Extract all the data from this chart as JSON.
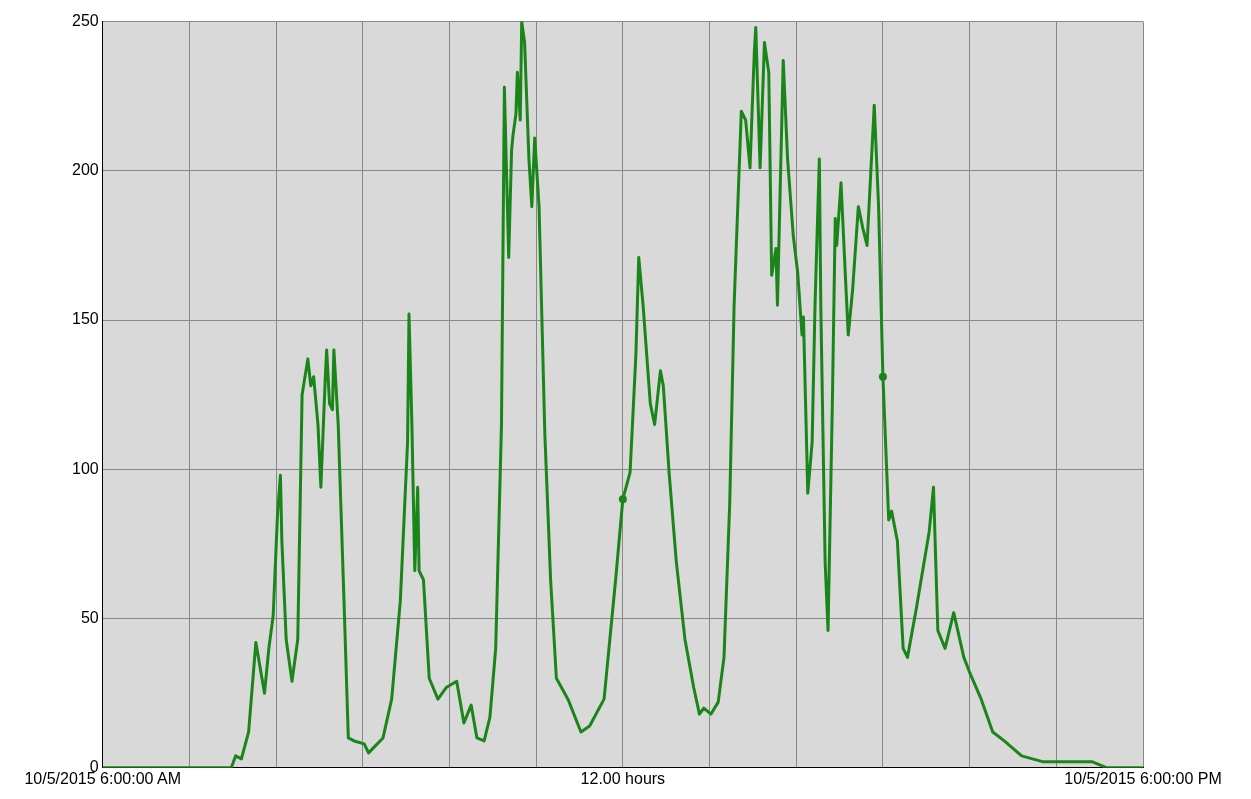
{
  "chart_data": {
    "type": "line",
    "x": [
      "2015-10-05T06:00",
      "2015-10-05T07:29",
      "2015-10-05T07:32",
      "2015-10-05T07:36",
      "2015-10-05T07:41",
      "2015-10-05T07:46",
      "2015-10-05T07:52",
      "2015-10-05T07:55",
      "2015-10-05T07:58",
      "2015-10-05T08:01",
      "2015-10-05T08:03",
      "2015-10-05T08:04",
      "2015-10-05T08:07",
      "2015-10-05T08:11",
      "2015-10-05T08:15",
      "2015-10-05T08:18",
      "2015-10-05T08:22",
      "2015-10-05T08:24",
      "2015-10-05T08:26",
      "2015-10-05T08:29",
      "2015-10-05T08:31",
      "2015-10-05T08:34",
      "2015-10-05T08:35",
      "2015-10-05T08:37",
      "2015-10-05T08:39",
      "2015-10-05T08:40",
      "2015-10-05T08:43",
      "2015-10-05T08:47",
      "2015-10-05T08:50",
      "2015-10-05T08:54",
      "2015-10-05T09:01",
      "2015-10-05T09:04",
      "2015-10-05T09:08",
      "2015-10-05T09:14",
      "2015-10-05T09:20",
      "2015-10-05T09:26",
      "2015-10-05T09:31",
      "2015-10-05T09:32",
      "2015-10-05T09:34",
      "2015-10-05T09:36",
      "2015-10-05T09:38",
      "2015-10-05T09:39",
      "2015-10-05T09:42",
      "2015-10-05T09:46",
      "2015-10-05T09:52",
      "2015-10-05T09:58",
      "2015-10-05T10:05",
      "2015-10-05T10:10",
      "2015-10-05T10:15",
      "2015-10-05T10:19",
      "2015-10-05T10:24",
      "2015-10-05T10:28",
      "2015-10-05T10:32",
      "2015-10-05T10:36",
      "2015-10-05T10:38",
      "2015-10-05T10:41",
      "2015-10-05T10:43",
      "2015-10-05T10:44",
      "2015-10-05T10:46",
      "2015-10-05T10:47",
      "2015-10-05T10:49",
      "2015-10-05T10:50",
      "2015-10-05T10:52",
      "2015-10-05T10:55",
      "2015-10-05T10:57",
      "2015-10-05T10:59",
      "2015-10-05T11:02",
      "2015-10-05T11:06",
      "2015-10-05T11:10",
      "2015-10-05T11:14",
      "2015-10-05T11:22",
      "2015-10-05T11:31",
      "2015-10-05T11:37",
      "2015-10-05T11:47",
      "2015-10-05T11:55",
      "2015-10-05T12:00",
      "2015-10-05T12:05",
      "2015-10-05T12:09",
      "2015-10-05T12:11",
      "2015-10-05T12:14",
      "2015-10-05T12:19",
      "2015-10-05T12:22",
      "2015-10-05T12:26",
      "2015-10-05T12:28",
      "2015-10-05T12:32",
      "2015-10-05T12:37",
      "2015-10-05T12:43",
      "2015-10-05T12:49",
      "2015-10-05T12:53",
      "2015-10-05T12:56",
      "2015-10-05T13:01",
      "2015-10-05T13:06",
      "2015-10-05T13:10",
      "2015-10-05T13:14",
      "2015-10-05T13:17",
      "2015-10-05T13:22",
      "2015-10-05T13:25",
      "2015-10-05T13:28",
      "2015-10-05T13:31",
      "2015-10-05T13:32",
      "2015-10-05T13:35",
      "2015-10-05T13:38",
      "2015-10-05T13:41",
      "2015-10-05T13:43",
      "2015-10-05T13:46",
      "2015-10-05T13:47",
      "2015-10-05T13:51",
      "2015-10-05T13:54",
      "2015-10-05T13:58",
      "2015-10-05T14:01",
      "2015-10-05T14:04",
      "2015-10-05T14:05",
      "2015-10-05T14:08",
      "2015-10-05T14:11",
      "2015-10-05T14:13",
      "2015-10-05T14:16",
      "2015-10-05T14:17",
      "2015-10-05T14:20",
      "2015-10-05T14:22",
      "2015-10-05T14:25",
      "2015-10-05T14:27",
      "2015-10-05T14:28",
      "2015-10-05T14:31",
      "2015-10-05T14:34",
      "2015-10-05T14:36",
      "2015-10-05T14:39",
      "2015-10-05T14:43",
      "2015-10-05T14:46",
      "2015-10-05T14:49",
      "2015-10-05T14:54",
      "2015-10-05T14:57",
      "2015-10-05T15:00",
      "2015-10-05T15:04",
      "2015-10-05T15:06",
      "2015-10-05T15:10",
      "2015-10-05T15:14",
      "2015-10-05T15:17",
      "2015-10-05T15:23",
      "2015-10-05T15:32",
      "2015-10-05T15:35",
      "2015-10-05T15:38",
      "2015-10-05T15:43",
      "2015-10-05T15:49",
      "2015-10-05T15:56",
      "2015-10-05T16:00",
      "2015-10-05T16:08",
      "2015-10-05T16:16",
      "2015-10-05T16:24",
      "2015-10-05T16:36",
      "2015-10-05T16:51",
      "2015-10-05T17:25",
      "2015-10-05T17:35",
      "2015-10-05T18:00"
    ],
    "series": [
      {
        "color": "#1a861a",
        "marker": "none",
        "values": [
          0,
          0,
          4,
          3,
          12,
          42,
          25,
          40,
          51,
          85,
          98,
          76,
          43,
          29,
          43,
          125,
          137,
          128,
          131,
          115,
          94,
          130,
          140,
          122,
          120,
          140,
          115,
          56,
          10,
          9,
          8,
          5,
          7,
          10,
          23,
          56,
          109,
          152,
          115,
          66,
          94,
          66,
          63,
          30,
          23,
          27,
          29,
          15,
          21,
          10,
          9,
          17,
          40,
          115,
          228,
          171,
          207,
          212,
          219,
          233,
          217,
          250,
          243,
          204,
          188,
          211,
          188,
          112,
          63,
          30,
          23,
          12,
          14,
          23,
          63,
          90,
          99,
          138,
          171,
          155,
          122,
          115,
          133,
          128,
          99,
          69,
          43,
          27,
          18,
          20,
          18,
          22,
          37,
          89,
          155,
          220,
          217,
          201,
          240,
          248,
          201,
          243,
          233,
          165,
          174,
          155,
          237,
          204,
          178,
          166,
          145,
          151,
          92,
          109,
          155,
          204,
          155,
          69,
          46,
          122,
          184,
          175,
          196,
          165,
          145,
          160,
          188,
          181,
          175,
          222,
          188,
          131,
          83,
          86,
          76,
          40,
          37,
          53,
          79,
          94,
          46,
          40,
          52,
          37,
          32,
          23,
          12,
          9,
          4,
          2,
          2,
          0,
          0
        ]
      },
      {
        "type": "scatter",
        "color": "#1a861a",
        "marker": "circle",
        "x": [
          "2015-10-05T12:00",
          "2015-10-05T15:00"
        ],
        "values": [
          90,
          131
        ]
      }
    ],
    "xlim": [
      "2015-10-05T06:00",
      "2015-10-05T18:00"
    ],
    "xticks": [
      {
        "value": "2015-10-05T06:00",
        "label": "10/5/2015 6:00:00 AM"
      },
      {
        "value": "2015-10-05T07:00",
        "label": null
      },
      {
        "value": "2015-10-05T08:00",
        "label": null
      },
      {
        "value": "2015-10-05T09:00",
        "label": null
      },
      {
        "value": "2015-10-05T10:00",
        "label": null
      },
      {
        "value": "2015-10-05T11:00",
        "label": null
      },
      {
        "value": "2015-10-05T12:00",
        "label": "12.00 hours"
      },
      {
        "value": "2015-10-05T13:00",
        "label": null
      },
      {
        "value": "2015-10-05T14:00",
        "label": null
      },
      {
        "value": "2015-10-05T15:00",
        "label": null
      },
      {
        "value": "2015-10-05T16:00",
        "label": null
      },
      {
        "value": "2015-10-05T17:00",
        "label": null
      },
      {
        "value": "2015-10-05T18:00",
        "label": "10/5/2015 6:00:00 PM"
      }
    ],
    "ylim": [
      0,
      250
    ],
    "yticks": [
      0,
      50,
      100,
      150,
      200,
      250
    ],
    "grid": true,
    "legend": false
  }
}
